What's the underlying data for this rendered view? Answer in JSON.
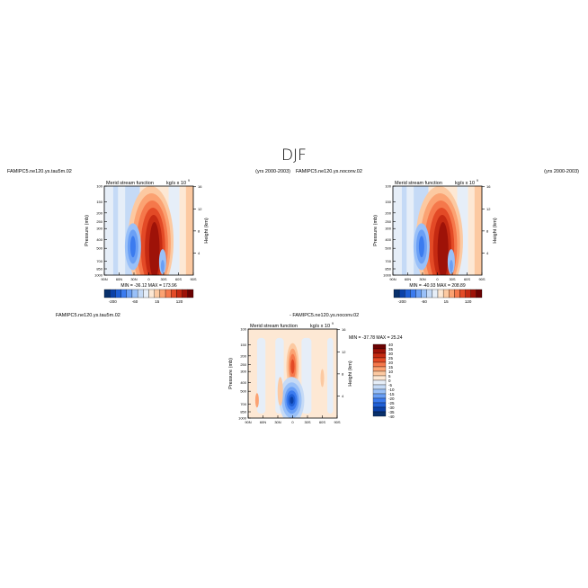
{
  "figure": {
    "title": "DJF",
    "colors": {
      "palette": [
        "#08306b",
        "#0b41a8",
        "#1f5fd6",
        "#3b7bef",
        "#6a9ff5",
        "#99c0f8",
        "#c5daf6",
        "#e6eef8",
        "#fde8d4",
        "#fcc9a1",
        "#fba272",
        "#f5784b",
        "#e34a26",
        "#c52a12",
        "#9e1208",
        "#6b0202"
      ]
    },
    "panels": [
      {
        "id": "p1",
        "case_label": "FAMIPC5.ne120.ys.tau5m.02",
        "years_label": "(yrs 2000-2003)",
        "title": "Merid stream function",
        "units_label": "kg/s x 10",
        "units_exponent": "9",
        "ylabel": "Pressure (mb)",
        "ylabel_right": "Height (km)",
        "min_max_label": "MIN = -36.12   MAX = 173.96",
        "colorbar_labels": [
          "-200",
          "-60",
          "15",
          "120"
        ]
      },
      {
        "id": "p2",
        "case_label": "FAMIPC5.ne120.ys.noconv.02",
        "years_label": "(yrs 2000-2003)",
        "title": "Merid stream function",
        "units_label": "kg/s x 10",
        "units_exponent": "9",
        "ylabel": "Pressure (mb)",
        "ylabel_right": "Height (km)",
        "min_max_label": "MIN = -40.93   MAX = 208.89",
        "colorbar_labels": [
          "-200",
          "-60",
          "15",
          "120"
        ]
      },
      {
        "id": "p3",
        "case_label": "FAMIPC5.ne120.ys.tau5m.02",
        "diff_label": "- FAMIPC5.ne120.ys.noconv.02",
        "title": "Merid stream function",
        "units_label": "kg/s x 10",
        "units_exponent": "9",
        "ylabel": "Pressure (mb)",
        "ylabel_right": "Height (km)",
        "min_max_label": "MIN = -37.78   MAX =  25.24",
        "colorbar_labels": [
          "40",
          "35",
          "30",
          "25",
          "20",
          "15",
          "10",
          "5",
          "0",
          "-5",
          "-10",
          "-15",
          "-20",
          "-25",
          "-30",
          "-35",
          "-40"
        ]
      }
    ]
  },
  "chart_data": [
    {
      "type": "heatmap",
      "title": "Merid stream function",
      "xlabel": "",
      "ylabel": "Pressure (mb)",
      "ylabel_right": "Height (km)",
      "x_ticks": [
        "90N",
        "60N",
        "30N",
        "0",
        "30S",
        "60S",
        "90S"
      ],
      "x_values": [
        90,
        60,
        30,
        0,
        -30,
        -60,
        -90
      ],
      "xlim": [
        90,
        -90
      ],
      "y_ticks": [
        "100",
        "150",
        "200",
        "250",
        "300",
        "400",
        "500",
        "700",
        "850",
        "1000"
      ],
      "y_scale": "log",
      "ylim": [
        1000,
        100
      ],
      "right_ticks": [
        "16",
        "12",
        "8",
        "4"
      ],
      "min": -36.12,
      "max": 173.96,
      "colorbar_levels": [
        -200,
        -150,
        -100,
        -80,
        -60,
        -40,
        -20,
        -5,
        5,
        15,
        30,
        50,
        80,
        100,
        120,
        150,
        200
      ],
      "features": [
        {
          "lat": 0,
          "p_top": 150,
          "p_bottom": 1000,
          "value": 173.96,
          "sign": "positive"
        },
        {
          "lat": -15,
          "p_top": 200,
          "p_bottom": 1000,
          "value": 120,
          "sign": "positive"
        },
        {
          "lat": 32,
          "p_top": 300,
          "p_bottom": 850,
          "value": -36.12,
          "sign": "negative"
        },
        {
          "lat": -30,
          "p_top": 500,
          "p_bottom": 1000,
          "value": -15,
          "sign": "negative"
        },
        {
          "lat": -55,
          "p_top": 150,
          "p_bottom": 1000,
          "value": 8,
          "sign": "positive"
        }
      ]
    },
    {
      "type": "heatmap",
      "title": "Merid stream function",
      "xlabel": "",
      "ylabel": "Pressure (mb)",
      "ylabel_right": "Height (km)",
      "x_ticks": [
        "90N",
        "60N",
        "30N",
        "0",
        "30S",
        "60S",
        "90S"
      ],
      "x_values": [
        90,
        60,
        30,
        0,
        -30,
        -60,
        -90
      ],
      "xlim": [
        90,
        -90
      ],
      "y_ticks": [
        "100",
        "150",
        "200",
        "250",
        "300",
        "400",
        "500",
        "700",
        "850",
        "1000"
      ],
      "y_scale": "log",
      "ylim": [
        1000,
        100
      ],
      "right_ticks": [
        "16",
        "12",
        "8",
        "4"
      ],
      "min": -40.93,
      "max": 208.89,
      "colorbar_levels": [
        -200,
        -150,
        -100,
        -80,
        -60,
        -40,
        -20,
        -5,
        5,
        15,
        30,
        50,
        80,
        100,
        120,
        150,
        200
      ],
      "features": [
        {
          "lat": 0,
          "p_top": 150,
          "p_bottom": 1000,
          "value": 208.89,
          "sign": "positive"
        },
        {
          "lat": -15,
          "p_top": 200,
          "p_bottom": 1000,
          "value": 130,
          "sign": "positive"
        },
        {
          "lat": 32,
          "p_top": 300,
          "p_bottom": 850,
          "value": -40.93,
          "sign": "negative"
        },
        {
          "lat": -30,
          "p_top": 500,
          "p_bottom": 1000,
          "value": -15,
          "sign": "negative"
        },
        {
          "lat": -55,
          "p_top": 150,
          "p_bottom": 1000,
          "value": 8,
          "sign": "positive"
        }
      ]
    },
    {
      "type": "heatmap",
      "title": "Merid stream function",
      "xlabel": "",
      "ylabel": "Pressure (mb)",
      "ylabel_right": "Height (km)",
      "x_ticks": [
        "90N",
        "60N",
        "30N",
        "0",
        "30S",
        "60S",
        "90S"
      ],
      "x_values": [
        90,
        60,
        30,
        0,
        -30,
        -60,
        -90
      ],
      "xlim": [
        90,
        -90
      ],
      "y_ticks": [
        "100",
        "150",
        "200",
        "250",
        "300",
        "400",
        "500",
        "700",
        "850",
        "1000"
      ],
      "y_scale": "log",
      "ylim": [
        1000,
        100
      ],
      "right_ticks": [
        "16",
        "12",
        "8",
        "4"
      ],
      "min": -37.78,
      "max": 25.24,
      "colorbar_levels": [
        -40,
        -35,
        -30,
        -25,
        -20,
        -15,
        -10,
        -5,
        0,
        5,
        10,
        15,
        20,
        25,
        30,
        35,
        40
      ],
      "features": [
        {
          "lat": 0,
          "p_top": 150,
          "p_bottom": 400,
          "value": 25.24,
          "sign": "positive"
        },
        {
          "lat": 0,
          "p_top": 400,
          "p_bottom": 1000,
          "value": -37.78,
          "sign": "negative"
        },
        {
          "lat": 15,
          "p_top": 300,
          "p_bottom": 850,
          "value": 5,
          "sign": "positive"
        },
        {
          "lat": -40,
          "p_top": 400,
          "p_bottom": 1000,
          "value": -3,
          "sign": "negative"
        }
      ]
    }
  ]
}
